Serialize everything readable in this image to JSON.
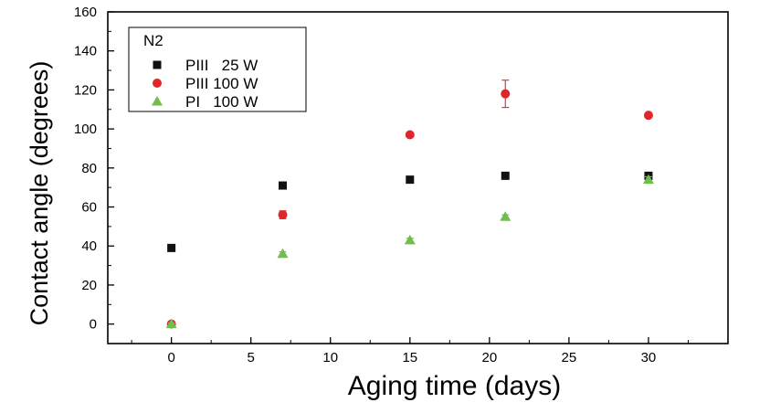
{
  "chart_data": {
    "type": "scatter",
    "xlabel": "Aging time (days)",
    "ylabel": "Contact angle (degrees)",
    "xlim": [
      -4,
      35
    ],
    "ylim": [
      -10,
      160
    ],
    "xticks": [
      0,
      5,
      10,
      15,
      20,
      25,
      30
    ],
    "yticks": [
      0,
      20,
      40,
      60,
      80,
      100,
      120,
      140,
      160
    ],
    "legend": {
      "title": "N2",
      "placement": "top-left"
    },
    "series": [
      {
        "name": "PIII   25 W",
        "color": "#111111",
        "marker": "square",
        "points": [
          {
            "x": 0,
            "y": 39,
            "err": 0.5
          },
          {
            "x": 7,
            "y": 71,
            "err": 1
          },
          {
            "x": 15,
            "y": 74,
            "err": 1.5
          },
          {
            "x": 21,
            "y": 76,
            "err": 1
          },
          {
            "x": 30,
            "y": 76,
            "err": 1
          }
        ]
      },
      {
        "name": "PIII 100 W",
        "color": "#e0262b",
        "marker": "circle",
        "points": [
          {
            "x": 0,
            "y": 0,
            "err": 0.5
          },
          {
            "x": 7,
            "y": 56,
            "err": 2
          },
          {
            "x": 15,
            "y": 97,
            "err": 1
          },
          {
            "x": 21,
            "y": 118,
            "err": 7
          },
          {
            "x": 30,
            "y": 107,
            "err": 1
          }
        ]
      },
      {
        "name": "PI   100 W",
        "color": "#6fbd4a",
        "marker": "triangle",
        "points": [
          {
            "x": 0,
            "y": 0,
            "err": 0.5
          },
          {
            "x": 7,
            "y": 36,
            "err": 1
          },
          {
            "x": 15,
            "y": 43,
            "err": 1
          },
          {
            "x": 21,
            "y": 55,
            "err": 1
          },
          {
            "x": 30,
            "y": 74,
            "err": 1.5
          }
        ]
      }
    ]
  }
}
